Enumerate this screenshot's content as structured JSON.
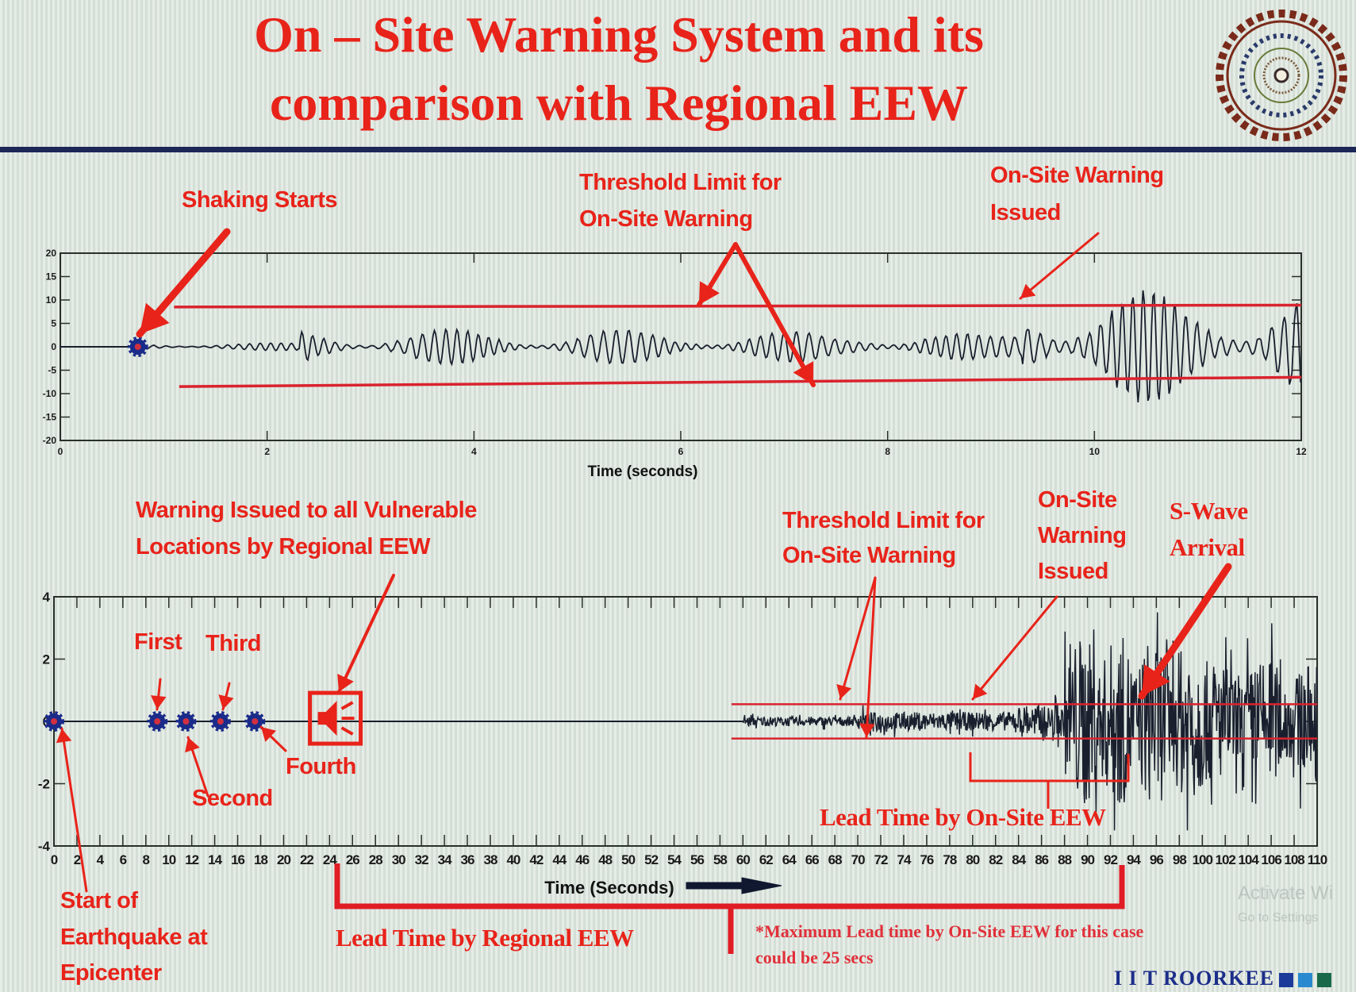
{
  "title": {
    "line1": "On – Site Warning System and its",
    "line2": "comparison with Regional EEW"
  },
  "colors": {
    "annotation_red": "#e8231a",
    "waveform": "#1a1f2e",
    "threshold": "#d9232e",
    "rule": "#1c2657",
    "marker": "#1a2b8a",
    "brand": "#1c2e8a"
  },
  "logo": {
    "name": "IIT Roorkee seal",
    "lettering": "INDIAN INSTITUTE OF TECHNOLOGY ROORKEE"
  },
  "top_annotations": {
    "shaking_starts": "Shaking Starts",
    "threshold_1": "Threshold Limit for",
    "threshold_2": "On-Site Warning",
    "issued_1": "On-Site Warning",
    "issued_2": "Issued"
  },
  "bottom_annotations": {
    "regional_1": "Warning Issued to all Vulnerable",
    "regional_2": "Locations by Regional EEW",
    "threshold_1": "Threshold Limit for",
    "threshold_2": "On-Site Warning",
    "issued_1": "On-Site",
    "issued_2": "Warning",
    "issued_3": "Issued",
    "swave_1": "S-Wave",
    "swave_2": "Arrival",
    "first": "First",
    "second": "Second",
    "third": "Third",
    "fourth": "Fourth",
    "start_1": "Start of",
    "start_2": "Earthquake at",
    "start_3": "Epicenter",
    "lead_onsite": "Lead Time by On-Site EEW",
    "lead_regional": "Lead Time by Regional EEW"
  },
  "footnote": {
    "line1": "*Maximum Lead time by On-Site EEW for this case",
    "line2": "could be 25 secs"
  },
  "brand": {
    "text": "I I T ROORKEE",
    "squares": [
      "#1c3a9a",
      "#2a8ad0",
      "#1a6a4a"
    ]
  },
  "watermark": {
    "line1": "Activate Wi",
    "line2": "Go to Settings"
  },
  "chart_data": [
    {
      "type": "line",
      "xlabel": "Time (seconds)",
      "ylabel": "",
      "xlim": [
        0,
        12
      ],
      "ylim": [
        -20,
        20
      ],
      "xticks": [
        0,
        2,
        4,
        6,
        8,
        10,
        12
      ],
      "yticks": [
        20,
        15,
        10,
        5,
        0,
        -5,
        -10,
        -15,
        -20
      ],
      "grid": false,
      "thresholds": [
        8.5,
        -8.5
      ],
      "events": {
        "shaking_starts": 0.75,
        "onsite_warning_issued": 9.3
      }
    },
    {
      "type": "line",
      "xlabel": "Time (Seconds)",
      "ylabel": "",
      "xlim": [
        0,
        110
      ],
      "ylim": [
        -4,
        4
      ],
      "xticks": [
        0,
        2,
        4,
        6,
        8,
        10,
        12,
        14,
        16,
        18,
        20,
        22,
        24,
        26,
        28,
        30,
        32,
        34,
        36,
        38,
        40,
        42,
        44,
        46,
        48,
        50,
        52,
        54,
        56,
        58,
        60,
        62,
        64,
        66,
        68,
        70,
        72,
        74,
        76,
        78,
        80,
        82,
        84,
        86,
        88,
        90,
        92,
        94,
        96,
        98,
        100,
        102,
        104,
        106,
        108,
        110
      ],
      "yticks": [
        4,
        2,
        0,
        -2,
        -4
      ],
      "grid": false,
      "thresholds": [
        0.55,
        -0.55
      ],
      "station_markers": [
        0,
        9,
        11.5,
        14.5,
        17.5
      ],
      "regional_warning_time": 24.5,
      "onsite_warning_issued": 80,
      "swave_arrival": 94,
      "lead_time_regional": [
        24,
        93
      ],
      "lead_time_onsite": [
        80,
        93
      ]
    }
  ]
}
